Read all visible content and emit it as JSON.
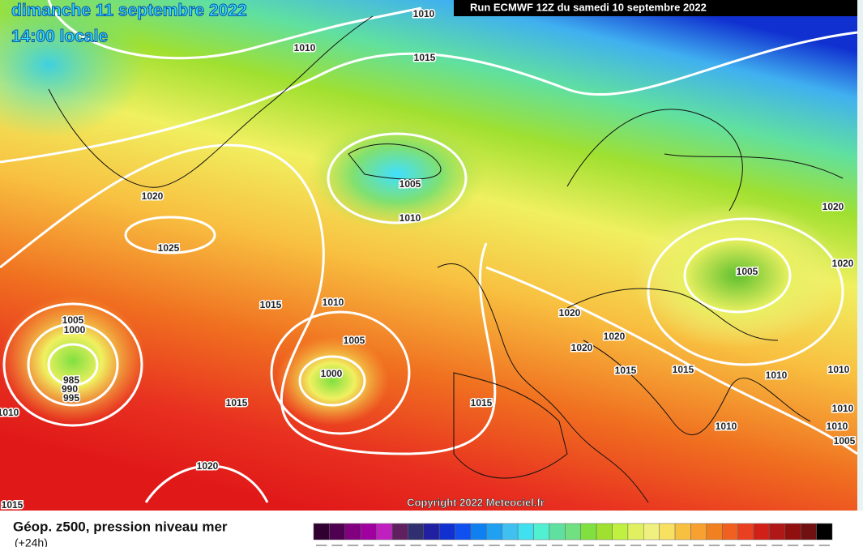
{
  "header": {
    "date": "dimanche 11 septembre 2022",
    "time": "14:00 locale",
    "run": "Run ECMWF 12Z du samedi 10 septembre 2022"
  },
  "isobar_labels": [
    "1010",
    "1010",
    "1015",
    "1020",
    "1025",
    "1005",
    "1010",
    "1015",
    "1010",
    "1005",
    "1000",
    "985",
    "990",
    "995",
    "1010",
    "1015",
    "1005",
    "1000",
    "1020",
    "1015",
    "1020",
    "1020",
    "1020",
    "1015",
    "1015",
    "1015",
    "1005",
    "1020",
    "1020",
    "1010",
    "1010",
    "1010",
    "1010",
    "1010",
    "1005"
  ],
  "copyright": "Copyright 2022 Meteociel.fr",
  "footer": {
    "title": "Géop. z500, pression niveau mer",
    "subtitle": "(+24h)"
  }
}
